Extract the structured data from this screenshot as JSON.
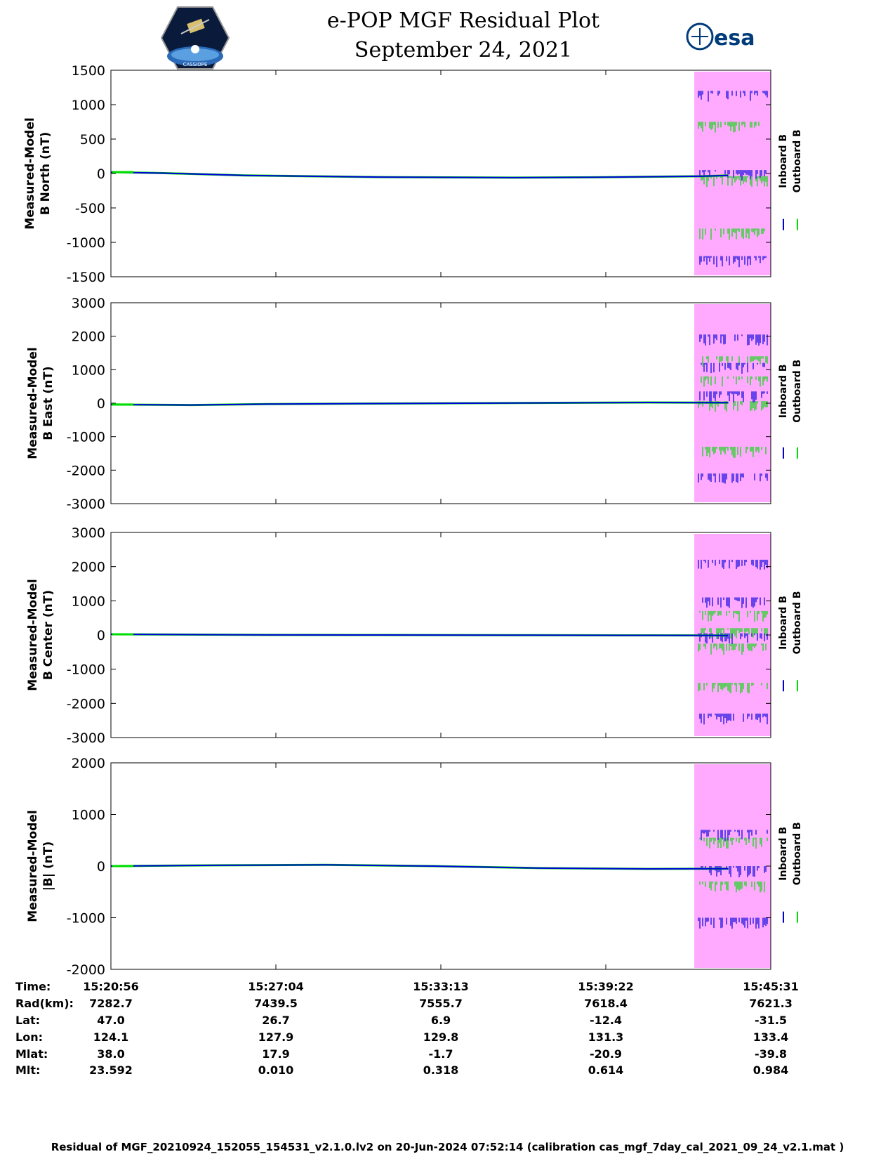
{
  "header": {
    "title_line1": "e-POP MGF Residual Plot",
    "title_line2": "September 24, 2021",
    "logo_left_text": "CASSIOPE",
    "logo_right_text": "esa"
  },
  "colors": {
    "inboard": "#0000dd",
    "outboard": "#00dd00",
    "highlight": "#ffaaff"
  },
  "chart_data": [
    {
      "type": "line",
      "ylabel": [
        "Measured-Model",
        "B North (nT)"
      ],
      "ylim": [
        -1500,
        1500
      ],
      "yticks": [
        1500,
        1000,
        500,
        0,
        -500,
        -1000,
        -1500
      ],
      "legend": [
        "Inboard B",
        "Outboard B"
      ],
      "xlim": [
        "15:20:56",
        "15:45:31"
      ],
      "series": [
        {
          "name": "Inboard B",
          "x_min": [
            0,
            2,
            5,
            10,
            15,
            18,
            22,
            23
          ],
          "values": [
            18,
            5,
            -28,
            -52,
            -60,
            -55,
            -40,
            -28
          ]
        },
        {
          "name": "Outboard B",
          "x_min": [
            0,
            2,
            5,
            10,
            15,
            18,
            22,
            23
          ],
          "values": [
            20,
            5,
            -28,
            -52,
            -60,
            -55,
            -40,
            -28
          ]
        }
      ],
      "highlight_band": [
        "15:42:40",
        "15:45:31"
      ],
      "band_inboard_levels": [
        1200,
        50,
        -1200
      ],
      "band_outboard_levels": [
        750,
        -40,
        -800
      ]
    },
    {
      "type": "line",
      "ylabel": [
        "Measured-Model",
        "B East (nT)"
      ],
      "ylim": [
        -3000,
        3000
      ],
      "yticks": [
        3000,
        2000,
        1000,
        0,
        -1000,
        -2000,
        -3000
      ],
      "legend": [
        "Inboard B",
        "Outboard B"
      ],
      "xlim": [
        "15:20:56",
        "15:45:31"
      ],
      "series": [
        {
          "name": "Inboard B",
          "x_min": [
            0,
            3,
            6,
            10,
            15,
            20,
            23
          ],
          "values": [
            -40,
            -55,
            -25,
            -10,
            5,
            20,
            15
          ]
        },
        {
          "name": "Outboard B",
          "x_min": [
            0,
            3,
            6,
            10,
            15,
            20,
            23
          ],
          "values": [
            -40,
            -55,
            -25,
            -10,
            5,
            20,
            15
          ]
        }
      ],
      "highlight_band": [
        "15:42:40",
        "15:45:31"
      ],
      "band_inboard_levels": [
        2050,
        1200,
        350,
        -2100
      ],
      "band_outboard_levels": [
        1400,
        800,
        60,
        -1300
      ]
    },
    {
      "type": "line",
      "ylabel": [
        "Measured-Model",
        "B Center (nT)"
      ],
      "ylim": [
        -3000,
        3000
      ],
      "yticks": [
        3000,
        2000,
        1000,
        0,
        -1000,
        -2000,
        -3000
      ],
      "legend": [
        "Inboard B",
        "Outboard B"
      ],
      "xlim": [
        "15:20:56",
        "15:45:31"
      ],
      "series": [
        {
          "name": "Inboard B",
          "x_min": [
            0,
            5,
            10,
            15,
            20,
            23
          ],
          "values": [
            20,
            5,
            0,
            -5,
            -10,
            -15
          ]
        },
        {
          "name": "Outboard B",
          "x_min": [
            0,
            5,
            10,
            15,
            20,
            23
          ],
          "values": [
            20,
            5,
            0,
            -5,
            -10,
            -15
          ]
        }
      ],
      "highlight_band": [
        "15:42:40",
        "15:45:31"
      ],
      "band_inboard_levels": [
        2200,
        1100,
        50,
        -2300
      ],
      "band_outboard_levels": [
        700,
        200,
        -250,
        -1400
      ]
    },
    {
      "type": "line",
      "ylabel": [
        "Measured-Model",
        "|B| (nT)"
      ],
      "ylim": [
        -2000,
        2000
      ],
      "yticks": [
        2000,
        1000,
        0,
        -1000,
        -2000
      ],
      "legend": [
        "Inboard B",
        "Outboard B"
      ],
      "xlim": [
        "15:20:56",
        "15:45:31"
      ],
      "series": [
        {
          "name": "Inboard B",
          "x_min": [
            0,
            4,
            8,
            12,
            16,
            20,
            23
          ],
          "values": [
            0,
            15,
            25,
            0,
            -40,
            -55,
            -50
          ]
        },
        {
          "name": "Outboard B",
          "x_min": [
            0,
            4,
            8,
            12,
            16,
            20,
            23
          ],
          "values": [
            0,
            15,
            25,
            0,
            -40,
            -55,
            -50
          ]
        }
      ],
      "highlight_band": [
        "15:42:40",
        "15:45:31"
      ],
      "band_inboard_levels": [
        700,
        0,
        -1000
      ],
      "band_outboard_levels": [
        550,
        -300
      ]
    }
  ],
  "info_table": {
    "labels": [
      "Time:",
      "Rad(km):",
      "Lat:",
      "Lon:",
      "Mlat:",
      "Mlt:"
    ],
    "columns": [
      [
        "15:20:56",
        "7282.7",
        "47.0",
        "124.1",
        "38.0",
        "23.592"
      ],
      [
        "15:27:04",
        "7439.5",
        "26.7",
        "127.9",
        "17.9",
        "0.010"
      ],
      [
        "15:33:13",
        "7555.7",
        "6.9",
        "129.8",
        "-1.7",
        "0.318"
      ],
      [
        "15:39:22",
        "7618.4",
        "-12.4",
        "131.3",
        "-20.9",
        "0.614"
      ],
      [
        "15:45:31",
        "7621.3",
        "-31.5",
        "133.4",
        "-39.8",
        "0.984"
      ]
    ]
  },
  "footer": "Residual of MGF_20210924_152055_154531_v2.1.0.lv2 on 20-Jun-2024 07:52:14 (calibration cas_mgf_7day_cal_2021_09_24_v2.1.mat )"
}
